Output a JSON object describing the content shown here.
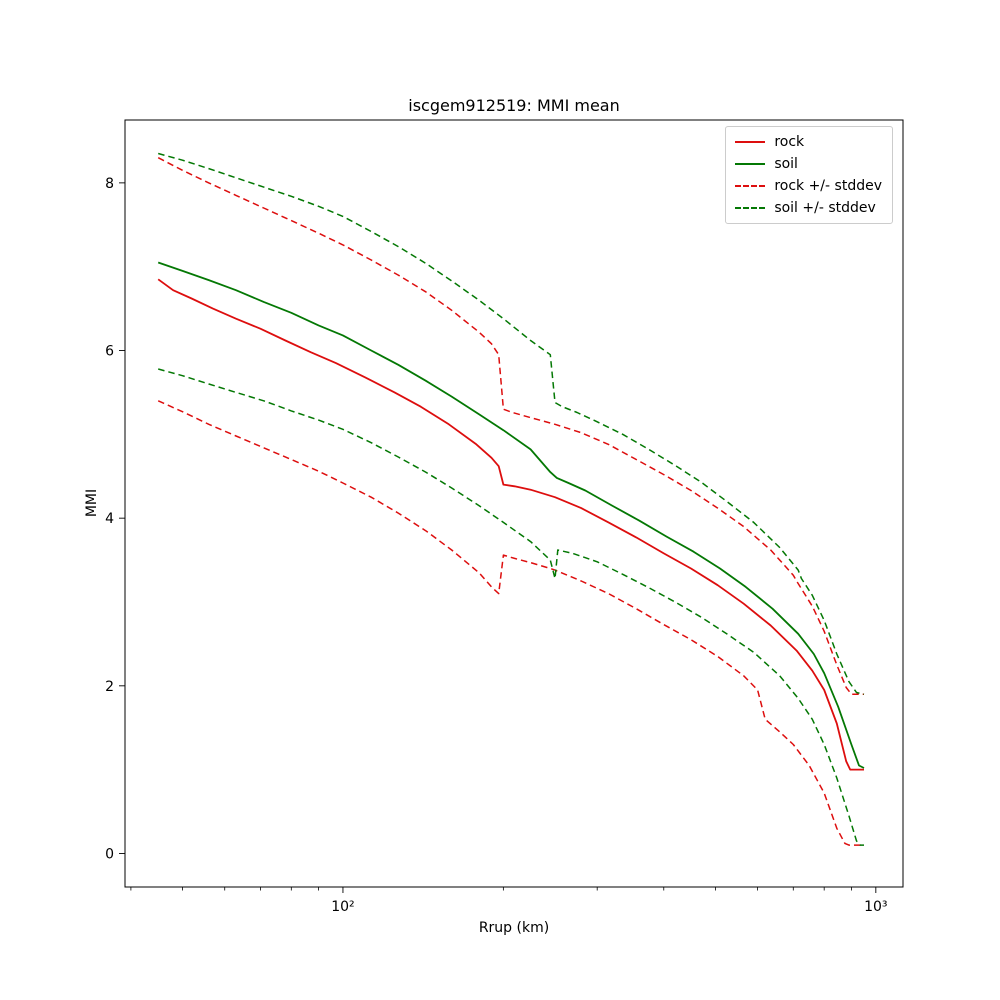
{
  "chart_data": {
    "type": "line",
    "title": "iscgem912519: MMI mean",
    "xlabel": "Rrup (km)",
    "ylabel": "MMI",
    "x_scale": "log",
    "grid": false,
    "legend_position": "upper right",
    "axes": {
      "xlog_range": [
        1.591,
        3.051
      ],
      "ylim": [
        -0.4,
        8.75
      ],
      "x_major_ticks": [
        {
          "value": 100,
          "label": "10²"
        },
        {
          "value": 1000,
          "label": "10³"
        }
      ],
      "x_minor_ticks": [
        40,
        50,
        60,
        70,
        80,
        90,
        200,
        300,
        400,
        500,
        600,
        700,
        800,
        900
      ],
      "y_ticks": [
        0,
        2,
        4,
        6,
        8
      ]
    },
    "colors": {
      "rock": "#dd0e0e",
      "soil": "#047804"
    },
    "legend": [
      {
        "label": "rock",
        "color": "#dd0e0e",
        "dash": false
      },
      {
        "label": "soil",
        "color": "#047804",
        "dash": false
      },
      {
        "label": "rock +/- stddev",
        "color": "#dd0e0e",
        "dash": true
      },
      {
        "label": "soil +/- stddev",
        "color": "#047804",
        "dash": true
      }
    ],
    "series": [
      {
        "name": "rock",
        "color": "#dd0e0e",
        "dash": false,
        "width": 1.8,
        "points": [
          [
            45,
            6.85
          ],
          [
            48,
            6.72
          ],
          [
            52,
            6.62
          ],
          [
            57,
            6.5
          ],
          [
            63,
            6.38
          ],
          [
            70,
            6.26
          ],
          [
            78,
            6.12
          ],
          [
            87,
            5.98
          ],
          [
            97,
            5.85
          ],
          [
            110,
            5.68
          ],
          [
            125,
            5.5
          ],
          [
            140,
            5.33
          ],
          [
            158,
            5.12
          ],
          [
            178,
            4.88
          ],
          [
            190,
            4.72
          ],
          [
            196,
            4.62
          ],
          [
            200,
            4.4
          ],
          [
            210,
            4.38
          ],
          [
            225,
            4.34
          ],
          [
            250,
            4.25
          ],
          [
            280,
            4.12
          ],
          [
            315,
            3.95
          ],
          [
            355,
            3.77
          ],
          [
            400,
            3.58
          ],
          [
            450,
            3.4
          ],
          [
            505,
            3.2
          ],
          [
            565,
            2.98
          ],
          [
            635,
            2.72
          ],
          [
            710,
            2.42
          ],
          [
            760,
            2.18
          ],
          [
            800,
            1.95
          ],
          [
            845,
            1.55
          ],
          [
            880,
            1.1
          ],
          [
            895,
            1.0
          ],
          [
            950,
            1.0
          ]
        ]
      },
      {
        "name": "soil",
        "color": "#047804",
        "dash": false,
        "width": 1.8,
        "points": [
          [
            45,
            7.05
          ],
          [
            50,
            6.95
          ],
          [
            56,
            6.84
          ],
          [
            63,
            6.72
          ],
          [
            71,
            6.58
          ],
          [
            80,
            6.45
          ],
          [
            90,
            6.3
          ],
          [
            100,
            6.18
          ],
          [
            113,
            6.0
          ],
          [
            127,
            5.83
          ],
          [
            143,
            5.64
          ],
          [
            160,
            5.45
          ],
          [
            180,
            5.24
          ],
          [
            200,
            5.05
          ],
          [
            225,
            4.82
          ],
          [
            245,
            4.55
          ],
          [
            252,
            4.48
          ],
          [
            265,
            4.42
          ],
          [
            285,
            4.33
          ],
          [
            320,
            4.15
          ],
          [
            360,
            3.97
          ],
          [
            405,
            3.78
          ],
          [
            455,
            3.6
          ],
          [
            510,
            3.4
          ],
          [
            570,
            3.18
          ],
          [
            640,
            2.92
          ],
          [
            715,
            2.62
          ],
          [
            765,
            2.38
          ],
          [
            800,
            2.15
          ],
          [
            850,
            1.75
          ],
          [
            900,
            1.3
          ],
          [
            930,
            1.05
          ],
          [
            950,
            1.02
          ]
        ]
      },
      {
        "name": "rock +1 stddev",
        "color": "#dd0e0e",
        "dash": true,
        "width": 1.5,
        "points": [
          [
            45,
            8.3
          ],
          [
            50,
            8.15
          ],
          [
            56,
            8.0
          ],
          [
            63,
            7.85
          ],
          [
            71,
            7.7
          ],
          [
            80,
            7.55
          ],
          [
            90,
            7.4
          ],
          [
            100,
            7.26
          ],
          [
            113,
            7.08
          ],
          [
            127,
            6.9
          ],
          [
            143,
            6.7
          ],
          [
            160,
            6.48
          ],
          [
            180,
            6.22
          ],
          [
            190,
            6.08
          ],
          [
            196,
            5.95
          ],
          [
            200,
            5.3
          ],
          [
            208,
            5.26
          ],
          [
            225,
            5.2
          ],
          [
            250,
            5.12
          ],
          [
            280,
            5.02
          ],
          [
            315,
            4.88
          ],
          [
            355,
            4.7
          ],
          [
            400,
            4.52
          ],
          [
            450,
            4.33
          ],
          [
            505,
            4.12
          ],
          [
            565,
            3.9
          ],
          [
            635,
            3.62
          ],
          [
            700,
            3.32
          ],
          [
            710,
            3.25
          ],
          [
            760,
            2.95
          ],
          [
            800,
            2.65
          ],
          [
            845,
            2.25
          ],
          [
            880,
            1.98
          ],
          [
            900,
            1.9
          ],
          [
            950,
            1.9
          ]
        ]
      },
      {
        "name": "rock -1 stddev",
        "color": "#dd0e0e",
        "dash": true,
        "width": 1.5,
        "points": [
          [
            45,
            5.4
          ],
          [
            50,
            5.27
          ],
          [
            56,
            5.12
          ],
          [
            63,
            4.98
          ],
          [
            71,
            4.84
          ],
          [
            80,
            4.7
          ],
          [
            90,
            4.56
          ],
          [
            100,
            4.42
          ],
          [
            113,
            4.25
          ],
          [
            127,
            4.06
          ],
          [
            143,
            3.85
          ],
          [
            160,
            3.62
          ],
          [
            180,
            3.35
          ],
          [
            190,
            3.18
          ],
          [
            196,
            3.1
          ],
          [
            200,
            3.56
          ],
          [
            210,
            3.52
          ],
          [
            225,
            3.47
          ],
          [
            245,
            3.4
          ],
          [
            250,
            3.38
          ],
          [
            280,
            3.25
          ],
          [
            315,
            3.1
          ],
          [
            355,
            2.92
          ],
          [
            400,
            2.73
          ],
          [
            450,
            2.55
          ],
          [
            505,
            2.35
          ],
          [
            565,
            2.12
          ],
          [
            600,
            1.95
          ],
          [
            620,
            1.6
          ],
          [
            660,
            1.45
          ],
          [
            700,
            1.3
          ],
          [
            750,
            1.05
          ],
          [
            800,
            0.72
          ],
          [
            845,
            0.3
          ],
          [
            875,
            0.12
          ],
          [
            890,
            0.1
          ],
          [
            950,
            0.1
          ]
        ]
      },
      {
        "name": "soil +1 stddev",
        "color": "#047804",
        "dash": true,
        "width": 1.5,
        "points": [
          [
            45,
            8.35
          ],
          [
            50,
            8.27
          ],
          [
            56,
            8.17
          ],
          [
            63,
            8.06
          ],
          [
            71,
            7.95
          ],
          [
            80,
            7.84
          ],
          [
            90,
            7.72
          ],
          [
            100,
            7.6
          ],
          [
            113,
            7.42
          ],
          [
            127,
            7.24
          ],
          [
            143,
            7.04
          ],
          [
            160,
            6.83
          ],
          [
            180,
            6.6
          ],
          [
            200,
            6.38
          ],
          [
            225,
            6.12
          ],
          [
            245,
            5.95
          ],
          [
            250,
            5.38
          ],
          [
            258,
            5.33
          ],
          [
            275,
            5.26
          ],
          [
            300,
            5.15
          ],
          [
            335,
            5.0
          ],
          [
            375,
            4.82
          ],
          [
            420,
            4.63
          ],
          [
            470,
            4.43
          ],
          [
            525,
            4.2
          ],
          [
            590,
            3.95
          ],
          [
            660,
            3.65
          ],
          [
            715,
            3.38
          ],
          [
            725,
            3.28
          ],
          [
            760,
            3.08
          ],
          [
            800,
            2.78
          ],
          [
            845,
            2.38
          ],
          [
            890,
            2.05
          ],
          [
            920,
            1.92
          ],
          [
            950,
            1.9
          ]
        ]
      },
      {
        "name": "soil -1 stddev",
        "color": "#047804",
        "dash": true,
        "width": 1.5,
        "points": [
          [
            45,
            5.78
          ],
          [
            50,
            5.7
          ],
          [
            56,
            5.6
          ],
          [
            63,
            5.5
          ],
          [
            71,
            5.4
          ],
          [
            80,
            5.28
          ],
          [
            90,
            5.17
          ],
          [
            100,
            5.06
          ],
          [
            113,
            4.9
          ],
          [
            127,
            4.73
          ],
          [
            143,
            4.55
          ],
          [
            160,
            4.36
          ],
          [
            180,
            4.15
          ],
          [
            200,
            3.95
          ],
          [
            225,
            3.72
          ],
          [
            245,
            3.5
          ],
          [
            250,
            3.28
          ],
          [
            253,
            3.62
          ],
          [
            270,
            3.58
          ],
          [
            300,
            3.48
          ],
          [
            335,
            3.33
          ],
          [
            375,
            3.17
          ],
          [
            420,
            3.0
          ],
          [
            470,
            2.82
          ],
          [
            525,
            2.62
          ],
          [
            590,
            2.4
          ],
          [
            660,
            2.12
          ],
          [
            715,
            1.85
          ],
          [
            760,
            1.6
          ],
          [
            800,
            1.3
          ],
          [
            845,
            0.9
          ],
          [
            890,
            0.45
          ],
          [
            920,
            0.15
          ],
          [
            935,
            0.1
          ],
          [
            950,
            0.1
          ]
        ]
      }
    ]
  }
}
